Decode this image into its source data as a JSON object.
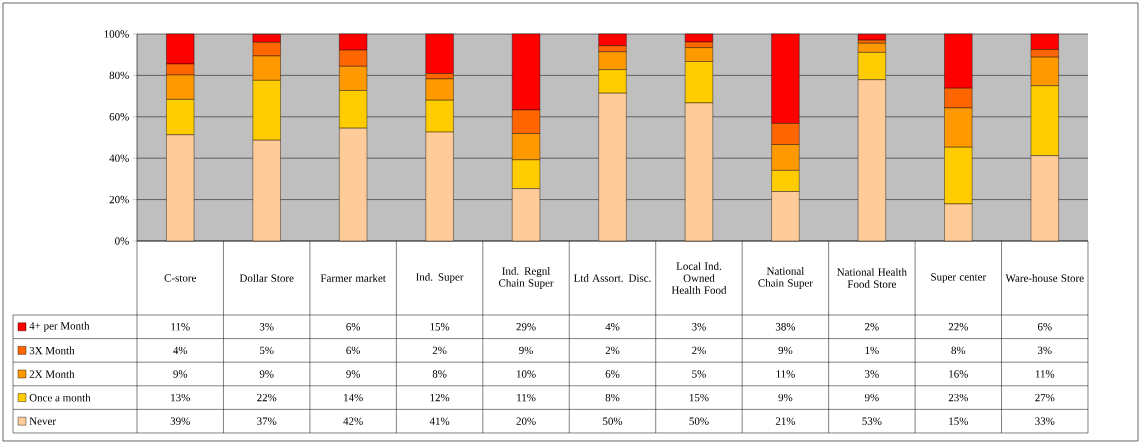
{
  "chart_data": [
    {
      "type": "bar",
      "stacked": true,
      "grid": "y",
      "legend": "bottom",
      "categories": [
        "C-store",
        "Dollar Store",
        "Farmer market",
        "Ind. Super",
        "Ind. Regnl Chain Super",
        "Ltd Assort. Disc.",
        "Local Ind. Owned Health Food",
        "National Chain Super",
        "National Health Food Store",
        "Super center",
        "Ware-house Store"
      ],
      "ylim": [
        0,
        100
      ],
      "yticks": [
        {
          "value": 0,
          "label": "0%"
        },
        {
          "value": 20,
          "label": "20%"
        },
        {
          "value": 40,
          "label": "40%"
        },
        {
          "value": 60,
          "label": "60%"
        },
        {
          "value": 80,
          "label": "80%"
        },
        {
          "value": 100,
          "label": "100%"
        }
      ],
      "series": [
        {
          "name": "Never",
          "color": "#ffcc99",
          "values": [
            51.3,
            48.7,
            54.5,
            52.6,
            25.3,
            71.4,
            66.7,
            23.9,
            77.9,
            17.9,
            41.2
          ]
        },
        {
          "name": "Once a month",
          "color": "#ffcc00",
          "values": [
            17.1,
            28.9,
            18.2,
            15.4,
            13.9,
            11.4,
            20.0,
            10.2,
            13.2,
            27.4,
            33.8
          ]
        },
        {
          "name": "2X Month",
          "color": "#ff9900",
          "values": [
            11.8,
            11.8,
            11.7,
            10.3,
            12.7,
            8.6,
            6.7,
            12.5,
            4.4,
            19.0,
            13.8
          ]
        },
        {
          "name": "3X Month",
          "color": "#ff6600",
          "values": [
            5.3,
            6.6,
            7.8,
            2.6,
            11.4,
            2.9,
            2.7,
            10.2,
            1.5,
            9.5,
            3.7
          ]
        },
        {
          "name": "4+ per Month",
          "color": "#ff0000",
          "values": [
            14.5,
            3.9,
            7.8,
            19.1,
            36.7,
            5.7,
            3.9,
            43.2,
            2.9,
            26.2,
            7.5
          ]
        }
      ]
    },
    {
      "type": "other",
      "annotations": [
        "11%",
        "3%",
        "6%",
        "15%",
        "29%",
        "4%",
        "3%",
        "38%",
        "2%",
        "22%",
        "6%",
        "4%",
        "5%",
        "6%",
        "2%",
        "9%",
        "2%",
        "2%",
        "9%",
        "1%",
        "8%",
        "3%",
        "9%",
        "9%",
        "9%",
        "8%",
        "10%",
        "6%",
        "5%",
        "11%",
        "3%",
        "16%",
        "11%",
        "13%",
        "22%",
        "14%",
        "12%",
        "11%",
        "8%",
        "15%",
        "9%",
        "9%",
        "23%",
        "27%",
        "39%",
        "37%",
        "42%",
        "41%",
        "20%",
        "50%",
        "50%",
        "21%",
        "53%",
        "15%",
        "33%"
      ]
    }
  ]
}
